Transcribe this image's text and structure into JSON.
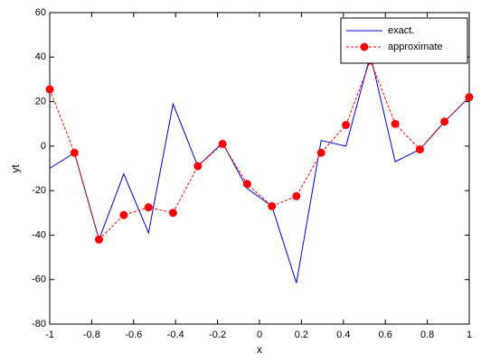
{
  "chart_data": {
    "type": "line",
    "x": [
      -1,
      -0.882,
      -0.765,
      -0.647,
      -0.529,
      -0.412,
      -0.294,
      -0.176,
      -0.059,
      0.059,
      0.176,
      0.294,
      0.412,
      0.529,
      0.647,
      0.765,
      0.882,
      1
    ],
    "series": [
      {
        "name": "exact.",
        "color": "#0000cc",
        "dash": false,
        "marker": false,
        "values": [
          -10,
          -3,
          -42,
          -12.5,
          -39,
          19,
          -9,
          1.5,
          -19,
          -27,
          -61.5,
          2.5,
          0,
          41,
          -7,
          -1.5,
          11,
          22
        ]
      },
      {
        "name": "approximate",
        "color": "#ff0000",
        "dash": true,
        "marker": true,
        "values": [
          25.5,
          -3,
          -42,
          -31,
          -27.5,
          -30,
          -9,
          1,
          -17,
          -27,
          -22.5,
          -3,
          9.5,
          38.5,
          10,
          -1.5,
          11,
          22
        ]
      }
    ],
    "xlabel": "x",
    "ylabel": "yt",
    "xlim": [
      -1,
      1
    ],
    "ylim": [
      -80,
      60
    ],
    "xticks": [
      -1,
      -0.8,
      -0.6,
      -0.4,
      -0.2,
      0,
      0.2,
      0.4,
      0.6,
      0.8,
      1
    ],
    "yticks": [
      -80,
      -60,
      -40,
      -20,
      0,
      20,
      40,
      60
    ],
    "legend": "upper right"
  }
}
